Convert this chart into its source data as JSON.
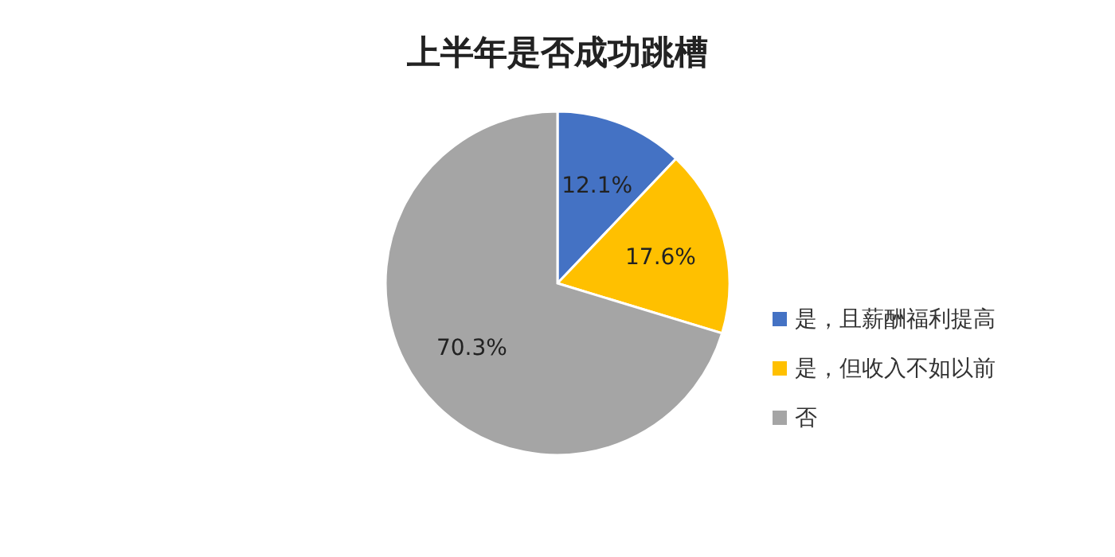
{
  "chart_data": {
    "type": "pie",
    "title": "上半年是否成功跳槽",
    "categories": [
      "是，且薪酬福利提高",
      "是，但收入不如以前",
      "否"
    ],
    "values": [
      12.1,
      17.6,
      70.3
    ],
    "colors": [
      "#4472c4",
      "#ffc000",
      "#a5a5a5"
    ],
    "value_labels": [
      "12.1%",
      "17.6%",
      "70.3%"
    ],
    "legend": "right"
  }
}
